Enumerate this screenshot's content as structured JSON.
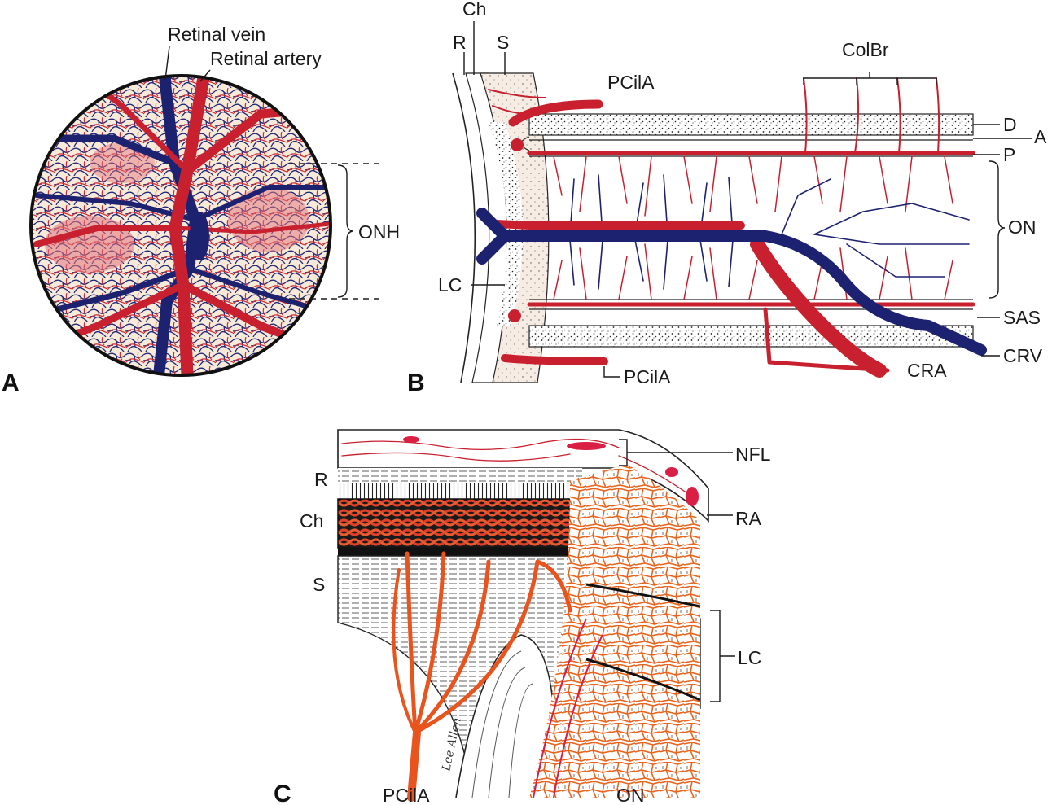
{
  "panels": {
    "a": "A",
    "b": "B",
    "c": "C"
  },
  "labels_a": {
    "retinal_vein": "Retinal vein",
    "retinal_artery": "Retinal artery",
    "onh": "ONH"
  },
  "labels_b": {
    "ch": "Ch",
    "r": "R",
    "s": "S",
    "pcila_top": "PCilA",
    "colbr": "ColBr",
    "d": "D",
    "a": "A",
    "p": "P",
    "on": "ON",
    "lc": "LC",
    "sas": "SAS",
    "crv": "CRV",
    "cra": "CRA",
    "pcila_bottom": "PCilA"
  },
  "labels_c": {
    "nfl": "NFL",
    "r": "R",
    "ra": "RA",
    "ch": "Ch",
    "s": "S",
    "lc": "LC",
    "pcila": "PCilA",
    "on": "ON",
    "signature": "Lee Allen"
  },
  "colors": {
    "artery": "#c8202e",
    "vein": "#1d2270",
    "capillary": "#e8531e",
    "tissue": "#f4e6d8"
  }
}
